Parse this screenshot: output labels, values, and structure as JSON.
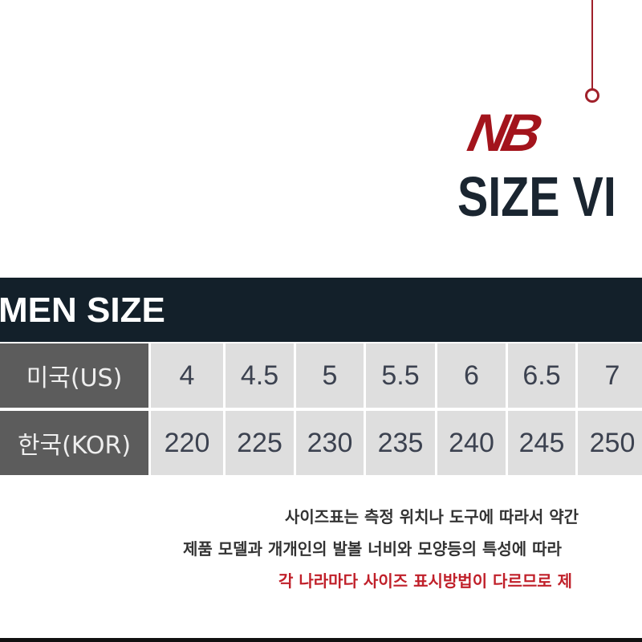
{
  "logo": {
    "brand": "NB",
    "title": "SIZE VI",
    "accent": "#a3141c"
  },
  "table": {
    "header": "MEN SIZE",
    "rows": [
      {
        "label": "미국(US)",
        "values": [
          "4",
          "4.5",
          "5",
          "5.5",
          "6",
          "6.5",
          "7"
        ]
      },
      {
        "label": "한국(KOR)",
        "values": [
          "220",
          "225",
          "230",
          "235",
          "240",
          "245",
          "250"
        ]
      }
    ]
  },
  "notes": [
    "사이즈표는 측정 위치나 도구에 따라서 약간",
    "제품 모델과 개개인의 발볼 너비와 모양등의 특성에 따라",
    "각 나라마다 사이즈 표시방법이 다르므로 제"
  ],
  "colors": {
    "header_bg": "#13202a",
    "label_bg": "#5c5c5c",
    "cell_bg": "#dedede",
    "warning": "#c0202a"
  }
}
